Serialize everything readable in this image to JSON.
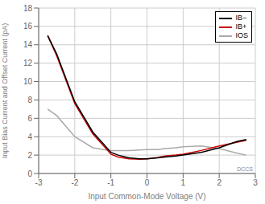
{
  "chart_data": {
    "type": "line",
    "xlabel": "Input Common-Mode Voltage (V)",
    "ylabel": "Input Bias Current and Offset Current (pA)",
    "xlim": [
      -3,
      3
    ],
    "ylim": [
      0,
      18
    ],
    "xticks": [
      -3,
      -2,
      -1,
      0,
      1,
      2,
      3
    ],
    "yticks": [
      0,
      2,
      4,
      6,
      8,
      10,
      12,
      14,
      16,
      18
    ],
    "grid": true,
    "legend": "upper right",
    "annotations": [
      "DCCS"
    ],
    "series": [
      {
        "name": "IB−",
        "color": "#000000",
        "x": [
          -2.75,
          -2.5,
          -2.0,
          -1.5,
          -1.2,
          -1.0,
          -0.8,
          -0.5,
          -0.2,
          0.0,
          0.3,
          0.5,
          0.8,
          1.0,
          1.5,
          2.0,
          2.5,
          2.75
        ],
        "values": [
          15.0,
          13.0,
          7.8,
          4.5,
          3.2,
          2.3,
          2.0,
          1.7,
          1.6,
          1.6,
          1.7,
          1.8,
          1.9,
          2.0,
          2.3,
          2.8,
          3.5,
          3.7
        ]
      },
      {
        "name": "IB+",
        "color": "#cc0000",
        "x": [
          -2.75,
          -2.5,
          -2.0,
          -1.5,
          -1.2,
          -1.0,
          -0.8,
          -0.5,
          -0.2,
          0.0,
          0.3,
          0.5,
          0.8,
          1.0,
          1.5,
          2.0,
          2.5,
          2.75
        ],
        "values": [
          15.0,
          12.8,
          7.6,
          4.3,
          3.0,
          2.1,
          1.8,
          1.6,
          1.55,
          1.6,
          1.75,
          1.9,
          2.0,
          2.1,
          2.5,
          3.0,
          3.4,
          3.6
        ]
      },
      {
        "name": "IOS",
        "color": "#aaaaaa",
        "x": [
          -2.75,
          -2.5,
          -2.0,
          -1.5,
          -1.2,
          -1.0,
          -0.8,
          -0.5,
          0.0,
          0.3,
          0.5,
          0.8,
          1.0,
          1.5,
          2.0,
          2.5,
          2.75
        ],
        "values": [
          7.0,
          6.3,
          4.0,
          2.8,
          2.6,
          2.5,
          2.5,
          2.5,
          2.6,
          2.6,
          2.7,
          2.8,
          2.9,
          3.0,
          2.7,
          2.2,
          2.0
        ]
      }
    ]
  }
}
